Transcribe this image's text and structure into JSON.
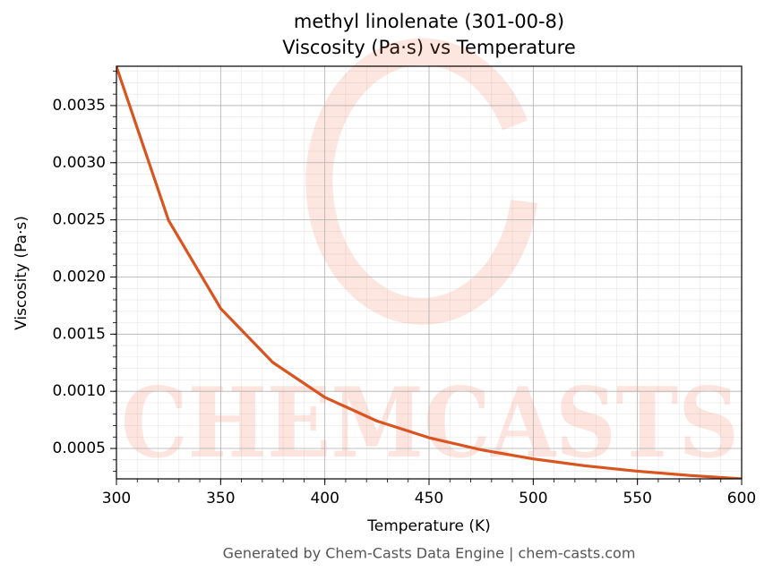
{
  "chart_data": {
    "type": "line",
    "title": "methyl linolenate (301-00-8)",
    "subtitle": "Viscosity (Pa·s) vs Temperature",
    "x_label": "Temperature (K)",
    "y_label": "Viscosity (Pa·s)",
    "x": [
      300,
      325,
      350,
      375,
      400,
      425,
      450,
      475,
      500,
      525,
      550,
      575,
      600
    ],
    "series": [
      {
        "name": "Viscosity",
        "color": "#d9541e",
        "values": [
          0.00384,
          0.002496,
          0.001725,
          0.001253,
          0.000947,
          0.00074,
          0.000594,
          0.000488,
          0.000409,
          0.000348,
          0.000301,
          0.000264,
          0.000234
        ]
      }
    ],
    "xlim": [
      300,
      600
    ],
    "ylim": [
      0.000234,
      0.003844
    ],
    "xticks": [
      300,
      350,
      400,
      450,
      500,
      550,
      600
    ],
    "yticks": [
      0.0005,
      {
        "value": 0.001,
        "label": "0.0010"
      },
      0.0015,
      {
        "value": 0.002,
        "label": "0.0020"
      },
      0.0025,
      {
        "value": 0.003,
        "label": "0.0030"
      },
      0.0035
    ],
    "grid": true,
    "watermark": "CHEMCASTS",
    "footer": "Generated by Chem-Casts Data Engine | chem-casts.com"
  }
}
